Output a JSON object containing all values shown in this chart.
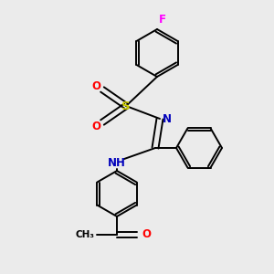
{
  "background_color": "#ebebeb",
  "fig_size": [
    3.0,
    3.0
  ],
  "dpi": 100,
  "atom_colors": {
    "F": "#ff00ff",
    "S": "#cccc00",
    "O": "#ff0000",
    "N": "#0000bb",
    "C": "#000000"
  },
  "bond_color": "#000000",
  "bond_width": 1.4,
  "font_size_atoms": 8.5,
  "font_size_small": 7.5
}
